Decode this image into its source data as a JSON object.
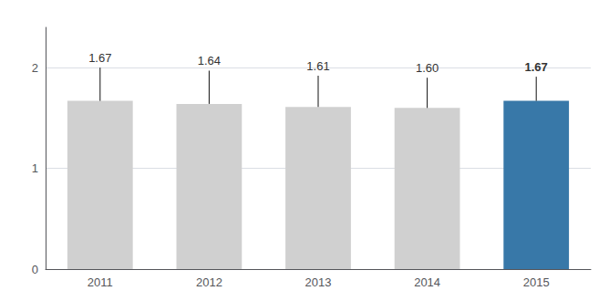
{
  "chart_data": {
    "type": "bar",
    "categories": [
      "2011",
      "2012",
      "2013",
      "2014",
      "2015"
    ],
    "values": [
      1.67,
      1.64,
      1.61,
      1.6,
      1.67
    ],
    "value_labels": [
      "1.67",
      "1.64",
      "1.61",
      "1.60",
      "1.67"
    ],
    "errors_upper": [
      0.33,
      0.33,
      0.31,
      0.3,
      0.24
    ],
    "colors": [
      "#d0d0d0",
      "#d0d0d0",
      "#d0d0d0",
      "#d0d0d0",
      "#3878a8"
    ],
    "ylim": [
      0,
      2.4
    ],
    "yticks": [
      0,
      1,
      2
    ],
    "grid": true,
    "data_labels": true
  }
}
